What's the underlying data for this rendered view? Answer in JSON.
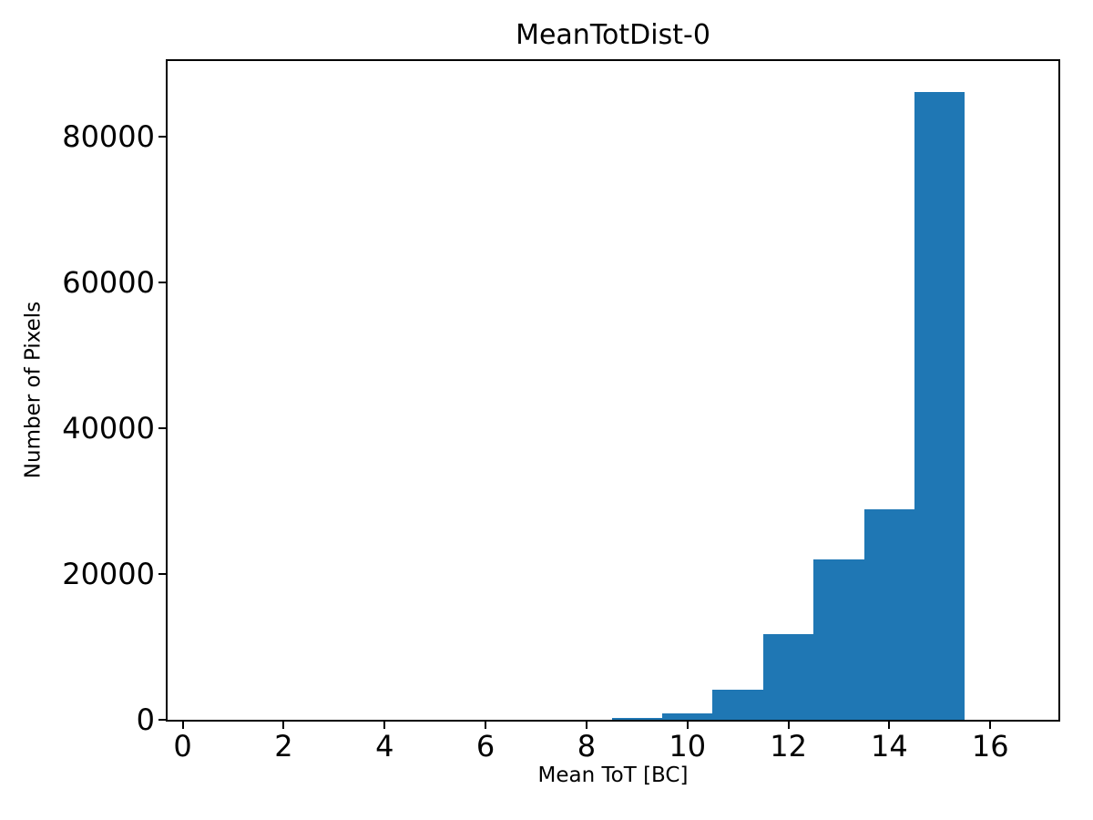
{
  "figure": {
    "background": "#ffffff",
    "text_color": "#000000"
  },
  "chart_data": {
    "type": "bar",
    "chart_kind": "histogram",
    "title": "MeanTotDist-0",
    "xlabel": "Mean ToT [BC]",
    "ylabel": "Number of Pixels",
    "bin_edges": [
      8.5,
      9.5,
      10.5,
      11.5,
      12.5,
      13.5,
      14.5,
      15.5
    ],
    "counts": [
      200,
      900,
      4100,
      11700,
      22000,
      28800,
      86000
    ],
    "xlim": [
      -0.3,
      17.35
    ],
    "ylim": [
      0,
      90300
    ],
    "xticks": {
      "values": [
        0,
        2,
        4,
        6,
        8,
        10,
        12,
        14,
        16
      ],
      "labels": [
        "0",
        "2",
        "4",
        "6",
        "8",
        "10",
        "12",
        "14",
        "16"
      ]
    },
    "yticks": {
      "values": [
        0,
        20000,
        40000,
        60000,
        80000
      ],
      "labels": [
        "0",
        "20000",
        "40000",
        "60000",
        "80000"
      ]
    },
    "bar_color": "#1f77b4",
    "axis_color": "#000000",
    "grid": false,
    "legend": null
  }
}
